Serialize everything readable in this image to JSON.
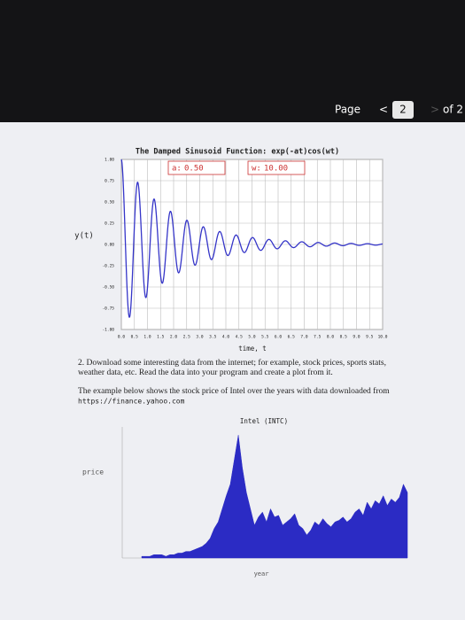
{
  "header": {
    "page_label": "Page",
    "prev": "<",
    "current": "2",
    "next": ">",
    "total": "of 2"
  },
  "chart_data": [
    {
      "type": "function",
      "title": "The Damped Sinusoid Function: exp(-at)cos(wt)",
      "controls": [
        {
          "label": "a:",
          "value": 0.5,
          "value_label": "0.50"
        },
        {
          "label": "w:",
          "value": 10,
          "value_label": "10.00"
        }
      ],
      "ylabel": "y(t)",
      "xlabel": "time, t",
      "color": "#3535c8",
      "grid": true,
      "xlim": [
        0,
        10
      ],
      "ylim": [
        -1,
        1
      ],
      "xticks": [
        {
          "value": 0,
          "label": "0.0"
        },
        {
          "value": 0.5,
          "label": "0.5"
        },
        {
          "value": 1,
          "label": "1.0"
        },
        {
          "value": 1.5,
          "label": "1.5"
        },
        {
          "value": 2,
          "label": "2.0"
        },
        {
          "value": 2.5,
          "label": "2.5"
        },
        {
          "value": 3,
          "label": "3.0"
        },
        {
          "value": 3.5,
          "label": "3.5"
        },
        {
          "value": 4,
          "label": "4.0"
        },
        {
          "value": 4.5,
          "label": "4.5"
        },
        {
          "value": 5,
          "label": "5.0"
        },
        {
          "value": 5.5,
          "label": "5.5"
        },
        {
          "value": 6,
          "label": "6.0"
        },
        {
          "value": 6.5,
          "label": "6.5"
        },
        {
          "value": 7,
          "label": "7.0"
        },
        {
          "value": 7.5,
          "label": "7.5"
        },
        {
          "value": 8,
          "label": "8.0"
        },
        {
          "value": 8.5,
          "label": "8.5"
        },
        {
          "value": 9,
          "label": "9.0"
        },
        {
          "value": 9.5,
          "label": "9.5"
        },
        {
          "value": 10,
          "label": "10.0"
        }
      ],
      "yticks": [
        {
          "value": 1,
          "label": "1.00"
        },
        {
          "value": 0.75,
          "label": "0.75"
        },
        {
          "value": 0.5,
          "label": "0.50"
        },
        {
          "value": 0.25,
          "label": "0.25"
        },
        {
          "value": 0,
          "label": "0.00"
        },
        {
          "value": -0.25,
          "label": "-0.25"
        },
        {
          "value": -0.5,
          "label": "-0.50"
        },
        {
          "value": -0.75,
          "label": "-0.75"
        },
        {
          "value": -1,
          "label": "-1.00"
        }
      ]
    },
    {
      "type": "area",
      "title": "Intel (INTC)",
      "ylabel": "price",
      "xlabel": "year",
      "color": "#2b2bc4",
      "ylim": [
        0,
        80
      ],
      "values": [
        1,
        1,
        1,
        2,
        2,
        2,
        1,
        2,
        2,
        3,
        3,
        4,
        4,
        5,
        6,
        7,
        9,
        12,
        18,
        22,
        30,
        38,
        45,
        60,
        75,
        55,
        40,
        30,
        20,
        25,
        28,
        22,
        30,
        25,
        26,
        20,
        22,
        24,
        27,
        20,
        18,
        14,
        17,
        22,
        20,
        24,
        21,
        19,
        22,
        23,
        25,
        22,
        24,
        28,
        30,
        26,
        34,
        30,
        35,
        33,
        38,
        32,
        36,
        34,
        37,
        45,
        40
      ]
    }
  ],
  "paragraphs": [
    [
      "2. Download some interesting data from the internet; for example, stock prices, sports stats,",
      "weather data, etc. Read the data into your program and create a plot from it."
    ],
    [
      "The example below shows the stock price of Intel over the years with data downloaded from",
      "https://finance.yahoo.com"
    ]
  ]
}
